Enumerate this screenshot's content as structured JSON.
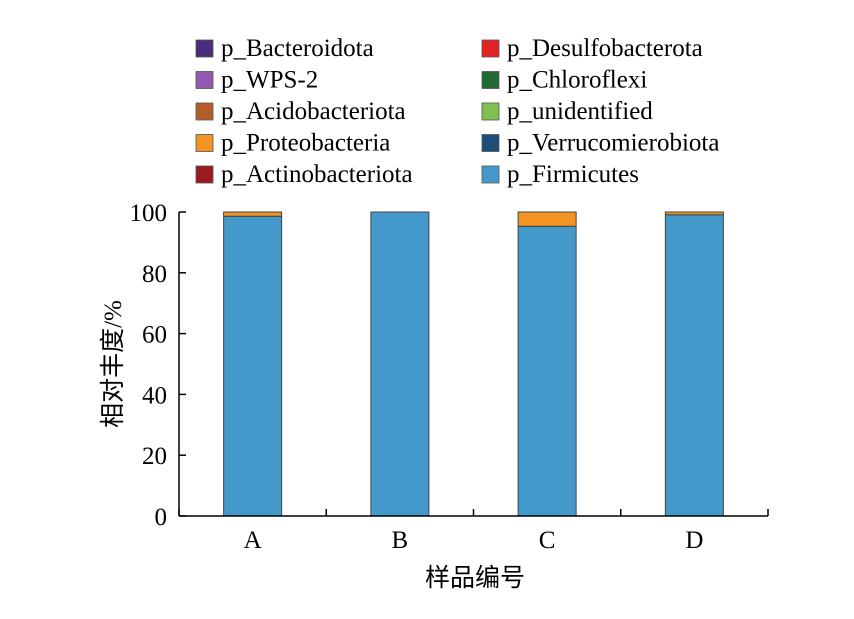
{
  "chart_data": {
    "type": "bar",
    "stacked": true,
    "categories": [
      "A",
      "B",
      "C",
      "D"
    ],
    "series": [
      {
        "name": "p_Firmicutes",
        "color": "#4399c9",
        "values": [
          98.6,
          100,
          95.3,
          99.1
        ]
      },
      {
        "name": "p_Proteobacteria",
        "color": "#f39323",
        "values": [
          1.4,
          0,
          4.7,
          0.9
        ]
      },
      {
        "name": "p_Bacteroidota",
        "color": "#4a2d7a",
        "values": [
          0,
          0,
          0,
          0
        ]
      },
      {
        "name": "p_WPS-2",
        "color": "#9159b0",
        "values": [
          0,
          0,
          0,
          0
        ]
      },
      {
        "name": "p_Acidobacteriota",
        "color": "#b35d2a",
        "values": [
          0,
          0,
          0,
          0
        ]
      },
      {
        "name": "p_Actinobacteriota",
        "color": "#9a1c1f",
        "values": [
          0,
          0,
          0,
          0
        ]
      },
      {
        "name": "p_Desulfobacterota",
        "color": "#e32326",
        "values": [
          0,
          0,
          0,
          0
        ]
      },
      {
        "name": "p_Chloroflexi",
        "color": "#1f6b32",
        "values": [
          0,
          0,
          0,
          0
        ]
      },
      {
        "name": "p_unidentified",
        "color": "#7fc250",
        "values": [
          0,
          0,
          0,
          0
        ]
      },
      {
        "name": "p_Verrucomierobiota",
        "color": "#1b4f7a",
        "values": [
          0,
          0,
          0,
          0
        ]
      }
    ],
    "legend_order": [
      "p_Bacteroidota",
      "p_WPS-2",
      "p_Acidobacteriota",
      "p_Proteobacteria",
      "p_Actinobacteriota",
      "p_Desulfobacterota",
      "p_Chloroflexi",
      "p_unidentified",
      "p_Verrucomierobiota",
      "p_Firmicutes"
    ],
    "legend_position": "top",
    "title": "",
    "xlabel": "样品编号",
    "ylabel": "相对丰度/%",
    "ylim": [
      0,
      100
    ],
    "yticks": [
      0,
      20,
      40,
      60,
      80,
      100
    ],
    "grid": false
  }
}
